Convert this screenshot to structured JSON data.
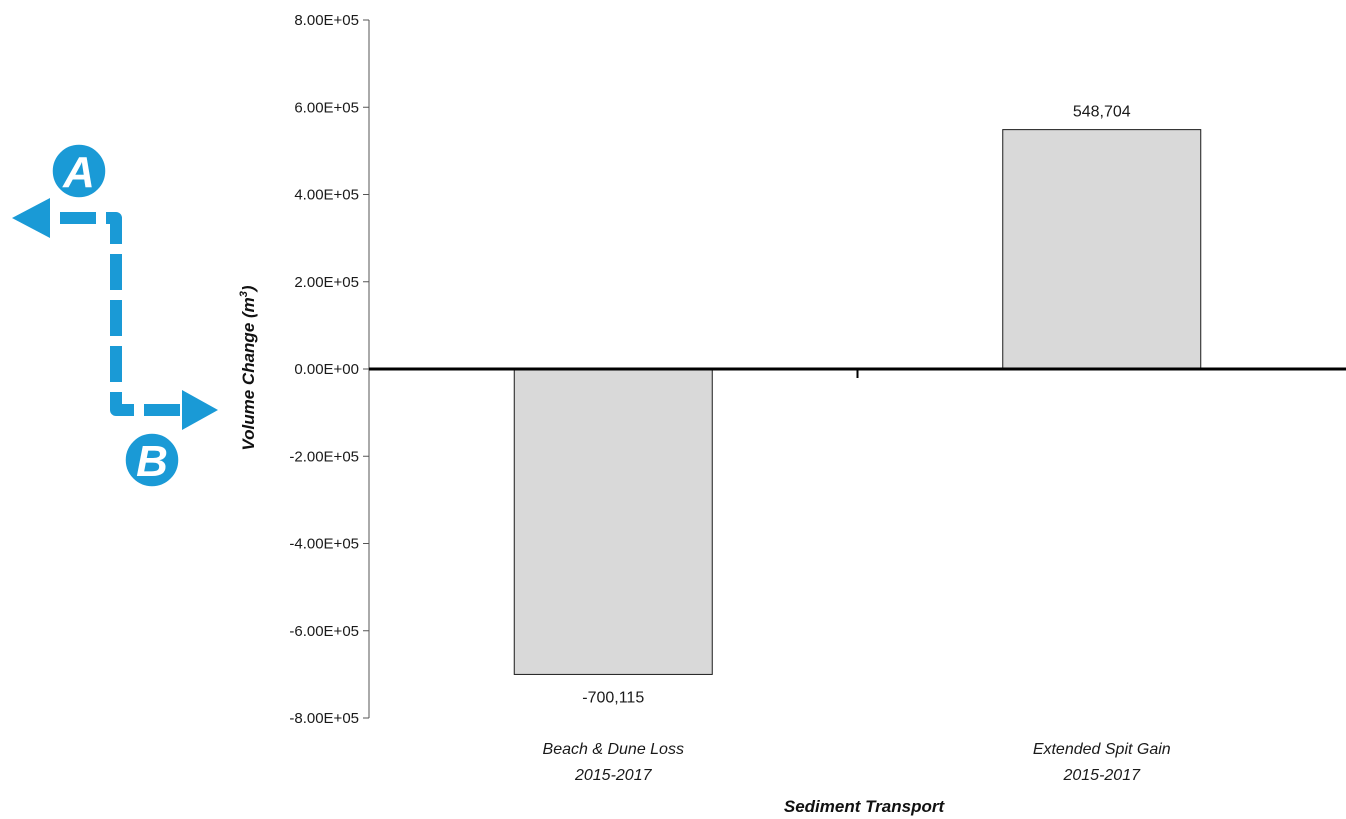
{
  "chart_data": {
    "type": "bar",
    "categories": [
      [
        "Beach & Dune Loss",
        "2015-2017"
      ],
      [
        "Extended Spit Gain",
        "2015-2017"
      ]
    ],
    "values": [
      -700115,
      548704
    ],
    "data_labels": [
      "-700,115",
      "548,704"
    ],
    "ylim": [
      -800000,
      800000
    ],
    "yticks": [
      -800000,
      -600000,
      -400000,
      -200000,
      0,
      200000,
      400000,
      600000,
      800000
    ],
    "ytick_labels": [
      "-8.00E+05",
      "-6.00E+05",
      "-4.00E+05",
      "-2.00E+05",
      "0.00E+00",
      "2.00E+05",
      "4.00E+05",
      "6.00E+05",
      "8.00E+05"
    ],
    "ylabel": "Volume Change (m",
    "ylabel_sup": "3",
    "ylabel_close": ")",
    "xlabel": "Sediment Transport",
    "title": "",
    "grid": false,
    "bar_fill": "#d9d9d9",
    "bar_stroke": "#1a1a1a"
  },
  "annotations": {
    "marker_a": "A",
    "marker_b": "B",
    "arrow_color": "#1a9ad6"
  }
}
